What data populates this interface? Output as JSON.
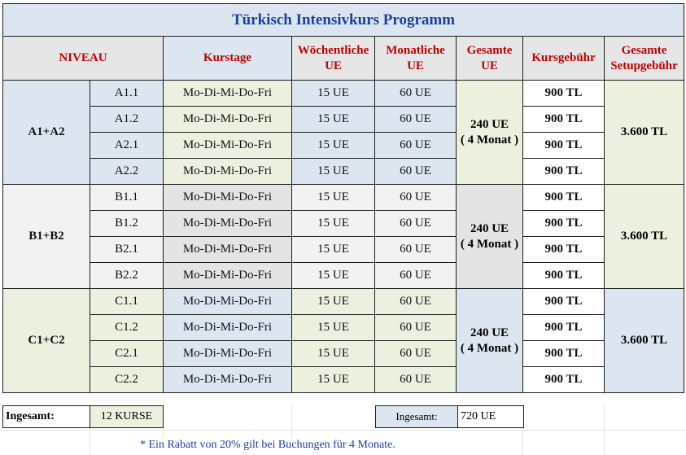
{
  "title": "Türkisch Intensivkurs Programm",
  "headers": {
    "niveau": "NIVEAU",
    "kurstage": "Kurstage",
    "woechentliche": [
      "Wöchentliche",
      "UE"
    ],
    "monatliche": [
      "Monatliche",
      "UE"
    ],
    "gesamte_ue": [
      "Gesamte",
      "UE"
    ],
    "kursgebuehr": "Kursgebühr",
    "setupgebuehr": [
      "Gesamte",
      "Setupgebühr"
    ]
  },
  "groups": [
    {
      "niveau": "A1+A2",
      "total_ue": [
        "240 UE",
        "( 4 Monat )"
      ],
      "setup": "3.600 TL",
      "rows": [
        {
          "level": "A1.1",
          "days": "Mo-Di-Mi-Do-Fri",
          "weekly": "15 UE",
          "monthly": "60 UE",
          "fee": "900 TL"
        },
        {
          "level": "A1.2",
          "days": "Mo-Di-Mi-Do-Fri",
          "weekly": "15 UE",
          "monthly": "60 UE",
          "fee": "900 TL"
        },
        {
          "level": "A2.1",
          "days": "Mo-Di-Mi-Do-Fri",
          "weekly": "15 UE",
          "monthly": "60 UE",
          "fee": "900 TL"
        },
        {
          "level": "A2.2",
          "days": "Mo-Di-Mi-Do-Fri",
          "weekly": "15 UE",
          "monthly": "60 UE",
          "fee": "900 TL"
        }
      ]
    },
    {
      "niveau": "B1+B2",
      "total_ue": [
        "240 UE",
        "( 4 Monat )"
      ],
      "setup": "3.600 TL",
      "rows": [
        {
          "level": "B1.1",
          "days": "Mo-Di-Mi-Do-Fri",
          "weekly": "15 UE",
          "monthly": "60 UE",
          "fee": "900 TL"
        },
        {
          "level": "B1.2",
          "days": "Mo-Di-Mi-Do-Fri",
          "weekly": "15 UE",
          "monthly": "60 UE",
          "fee": "900 TL"
        },
        {
          "level": "B2.1",
          "days": "Mo-Di-Mi-Do-Fri",
          "weekly": "15 UE",
          "monthly": "60 UE",
          "fee": "900 TL"
        },
        {
          "level": "B2.2",
          "days": "Mo-Di-Mi-Do-Fri",
          "weekly": "15 UE",
          "monthly": "60 UE",
          "fee": "900 TL"
        }
      ]
    },
    {
      "niveau": "C1+C2",
      "total_ue": [
        "240 UE",
        "( 4 Monat )"
      ],
      "setup": "3.600 TL",
      "rows": [
        {
          "level": "C1.1",
          "days": "Mo-Di-Mi-Do-Fri",
          "weekly": "15 UE",
          "monthly": "60 UE",
          "fee": "900 TL"
        },
        {
          "level": "C1.2",
          "days": "Mo-Di-Mi-Do-Fri",
          "weekly": "15 UE",
          "monthly": "60 UE",
          "fee": "900 TL"
        },
        {
          "level": "C2.1",
          "days": "Mo-Di-Mi-Do-Fri",
          "weekly": "15 UE",
          "monthly": "60 UE",
          "fee": "900 TL"
        },
        {
          "level": "C2.2",
          "days": "Mo-Di-Mi-Do-Fri",
          "weekly": "15 UE",
          "monthly": "60 UE",
          "fee": "900 TL"
        }
      ]
    }
  ],
  "footer": {
    "label_left": "Ingesamt:",
    "courses": "12 KURSE",
    "label_right": "Ingesamt:",
    "total": "720 UE"
  },
  "note": "* Ein Rabatt von 20% gilt bei Buchungen für 4 Monate."
}
